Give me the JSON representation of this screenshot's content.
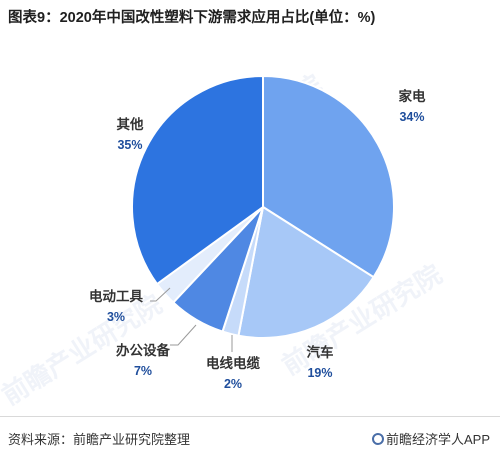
{
  "title": "图表9：2020年中国改性塑料下游需求应用占比(单位：%)",
  "footer": {
    "source": "资料来源：前瞻产业研究院整理",
    "brand": "前瞻经济学人APP"
  },
  "watermark": "前瞻产业研究院",
  "colors": {
    "label_text": "#333333",
    "pct_text": "#1f4e9c",
    "leader": "#9a9a9a"
  },
  "chart_data": {
    "type": "pie",
    "title": "图表9：2020年中国改性塑料下游需求应用占比(单位：%)",
    "slices": [
      {
        "label": "家电",
        "value": 34,
        "pct_label": "34%",
        "color": "#6fa3ef"
      },
      {
        "label": "汽车",
        "value": 19,
        "pct_label": "19%",
        "color": "#a7c8f7"
      },
      {
        "label": "电线电缆",
        "value": 2,
        "pct_label": "2%",
        "color": "#c6dbfa"
      },
      {
        "label": "办公设备",
        "value": 7,
        "pct_label": "7%",
        "color": "#4f88e3"
      },
      {
        "label": "电动工具",
        "value": 3,
        "pct_label": "3%",
        "color": "#e3edfc"
      },
      {
        "label": "其他",
        "value": 35,
        "pct_label": "35%",
        "color": "#2d74e0"
      }
    ],
    "start_at": "top",
    "direction": "clockwise"
  }
}
